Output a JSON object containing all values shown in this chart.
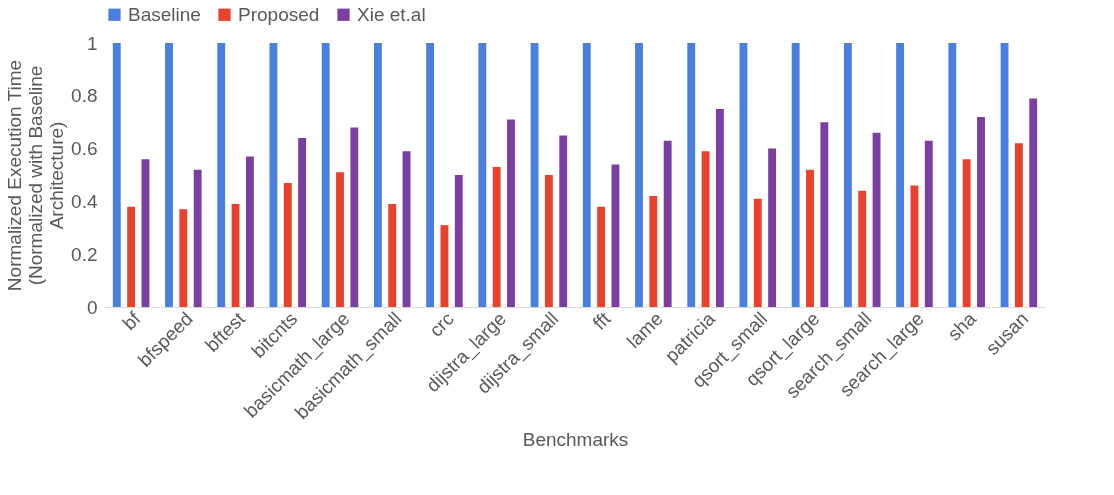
{
  "chart_data": {
    "type": "bar",
    "xlabel": "Benchmarks",
    "ylabel": "Normalized Execution Time (Normalized with Baseline Architecture)",
    "categories": [
      "bf",
      "bfspeed",
      "bftest",
      "bitcnts",
      "basicmath_large",
      "basicmath_small",
      "crc",
      "dijstra_large",
      "dijstra_small",
      "fft",
      "lame",
      "patricia",
      "qsort_small",
      "qsort_large",
      "search_small",
      "search_large",
      "sha",
      "susan"
    ],
    "series": [
      {
        "name": "Baseline",
        "color": "#4a7fe0",
        "values": [
          1,
          1,
          1,
          1,
          1,
          1,
          1,
          1,
          1,
          1,
          1,
          1,
          1,
          1,
          1,
          1,
          1,
          1
        ]
      },
      {
        "name": "Proposed",
        "color": "#e8412c",
        "values": [
          0.38,
          0.37,
          0.39,
          0.47,
          0.51,
          0.39,
          0.31,
          0.53,
          0.5,
          0.38,
          0.42,
          0.59,
          0.41,
          0.52,
          0.44,
          0.46,
          0.56,
          0.62
        ]
      },
      {
        "name": "Xie et.al",
        "color": "#7a3fa0",
        "values": [
          0.56,
          0.52,
          0.57,
          0.64,
          0.68,
          0.59,
          0.5,
          0.71,
          0.65,
          0.54,
          0.63,
          0.75,
          0.6,
          0.7,
          0.66,
          0.63,
          0.72,
          0.79
        ]
      }
    ],
    "ylim": [
      0,
      1
    ],
    "yticks": [
      0,
      0.2,
      0.4,
      0.6,
      0.8,
      1
    ],
    "grid": false,
    "legend": "top"
  }
}
